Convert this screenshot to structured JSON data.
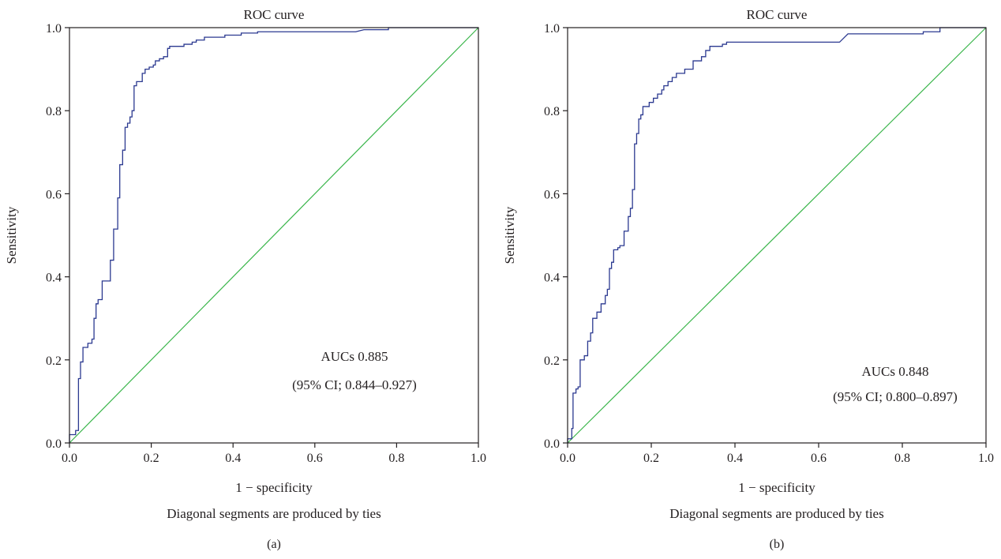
{
  "footnote": "Diagonal segments are produced by ties",
  "chart_data": [
    {
      "type": "line",
      "panel_label": "(a)",
      "title": "ROC curve",
      "xlabel": "1 − specificity",
      "ylabel": "Sensitivity",
      "xlim": [
        0,
        1
      ],
      "ylim": [
        0,
        1
      ],
      "xticks": [
        "0.0",
        "0.2",
        "0.4",
        "0.6",
        "0.8",
        "1.0"
      ],
      "yticks": [
        "0.0",
        "0.2",
        "0.4",
        "0.6",
        "0.8",
        "1.0"
      ],
      "grid": false,
      "annotation_auc": "AUCs 0.885",
      "annotation_ci": "(95% CI; 0.844–0.927)",
      "colors": {
        "roc": "#2b3990",
        "reference": "#39b54a"
      },
      "series": [
        {
          "points": [
            [
              0,
              0
            ],
            [
              0,
              0.02
            ],
            [
              0.015,
              0.02
            ],
            [
              0.015,
              0.03
            ],
            [
              0.022,
              0.03
            ],
            [
              0.022,
              0.155
            ],
            [
              0.027,
              0.155
            ],
            [
              0.027,
              0.195
            ],
            [
              0.033,
              0.195
            ],
            [
              0.033,
              0.23
            ],
            [
              0.045,
              0.23
            ],
            [
              0.045,
              0.24
            ],
            [
              0.055,
              0.24
            ],
            [
              0.055,
              0.25
            ],
            [
              0.06,
              0.25
            ],
            [
              0.06,
              0.3
            ],
            [
              0.065,
              0.3
            ],
            [
              0.065,
              0.335
            ],
            [
              0.07,
              0.335
            ],
            [
              0.07,
              0.345
            ],
            [
              0.08,
              0.345
            ],
            [
              0.08,
              0.39
            ],
            [
              0.1,
              0.39
            ],
            [
              0.1,
              0.44
            ],
            [
              0.108,
              0.44
            ],
            [
              0.108,
              0.515
            ],
            [
              0.118,
              0.515
            ],
            [
              0.118,
              0.59
            ],
            [
              0.123,
              0.59
            ],
            [
              0.123,
              0.67
            ],
            [
              0.13,
              0.67
            ],
            [
              0.13,
              0.705
            ],
            [
              0.136,
              0.705
            ],
            [
              0.136,
              0.76
            ],
            [
              0.142,
              0.76
            ],
            [
              0.142,
              0.77
            ],
            [
              0.148,
              0.77
            ],
            [
              0.148,
              0.785
            ],
            [
              0.153,
              0.785
            ],
            [
              0.153,
              0.8
            ],
            [
              0.158,
              0.8
            ],
            [
              0.158,
              0.86
            ],
            [
              0.164,
              0.86
            ],
            [
              0.164,
              0.87
            ],
            [
              0.178,
              0.87
            ],
            [
              0.178,
              0.89
            ],
            [
              0.185,
              0.89
            ],
            [
              0.185,
              0.9
            ],
            [
              0.195,
              0.9
            ],
            [
              0.195,
              0.905
            ],
            [
              0.205,
              0.905
            ],
            [
              0.205,
              0.91
            ],
            [
              0.21,
              0.91
            ],
            [
              0.21,
              0.92
            ],
            [
              0.22,
              0.92
            ],
            [
              0.22,
              0.925
            ],
            [
              0.23,
              0.925
            ],
            [
              0.23,
              0.93
            ],
            [
              0.24,
              0.93
            ],
            [
              0.24,
              0.95
            ],
            [
              0.245,
              0.95
            ],
            [
              0.245,
              0.955
            ],
            [
              0.28,
              0.955
            ],
            [
              0.28,
              0.96
            ],
            [
              0.3,
              0.96
            ],
            [
              0.3,
              0.965
            ],
            [
              0.31,
              0.965
            ],
            [
              0.31,
              0.97
            ],
            [
              0.33,
              0.97
            ],
            [
              0.33,
              0.977
            ],
            [
              0.38,
              0.977
            ],
            [
              0.38,
              0.982
            ],
            [
              0.42,
              0.982
            ],
            [
              0.42,
              0.987
            ],
            [
              0.46,
              0.987
            ],
            [
              0.46,
              0.99
            ],
            [
              0.7,
              0.99
            ],
            [
              0.72,
              0.995
            ],
            [
              0.78,
              0.995
            ],
            [
              0.78,
              1
            ],
            [
              1,
              1
            ]
          ]
        }
      ]
    },
    {
      "type": "line",
      "panel_label": "(b)",
      "title": "ROC curve",
      "xlabel": "1 − specificity",
      "ylabel": "Sensitivity",
      "xlim": [
        0,
        1
      ],
      "ylim": [
        0,
        1
      ],
      "xticks": [
        "0.0",
        "0.2",
        "0.4",
        "0.6",
        "0.8",
        "1.0"
      ],
      "yticks": [
        "0.0",
        "0.2",
        "0.4",
        "0.6",
        "0.8",
        "1.0"
      ],
      "grid": false,
      "annotation_auc": "AUCs 0.848",
      "annotation_ci": "(95% CI; 0.800–0.897)",
      "colors": {
        "roc": "#2b3990",
        "reference": "#39b54a"
      },
      "series": [
        {
          "points": [
            [
              0,
              0
            ],
            [
              0,
              0.01
            ],
            [
              0.01,
              0.01
            ],
            [
              0.01,
              0.035
            ],
            [
              0.013,
              0.035
            ],
            [
              0.013,
              0.12
            ],
            [
              0.02,
              0.12
            ],
            [
              0.02,
              0.13
            ],
            [
              0.025,
              0.13
            ],
            [
              0.025,
              0.135
            ],
            [
              0.03,
              0.135
            ],
            [
              0.03,
              0.2
            ],
            [
              0.04,
              0.2
            ],
            [
              0.04,
              0.21
            ],
            [
              0.048,
              0.21
            ],
            [
              0.048,
              0.245
            ],
            [
              0.055,
              0.245
            ],
            [
              0.055,
              0.265
            ],
            [
              0.06,
              0.265
            ],
            [
              0.06,
              0.3
            ],
            [
              0.07,
              0.3
            ],
            [
              0.07,
              0.315
            ],
            [
              0.08,
              0.315
            ],
            [
              0.08,
              0.335
            ],
            [
              0.09,
              0.335
            ],
            [
              0.09,
              0.355
            ],
            [
              0.095,
              0.355
            ],
            [
              0.095,
              0.37
            ],
            [
              0.1,
              0.37
            ],
            [
              0.1,
              0.42
            ],
            [
              0.105,
              0.42
            ],
            [
              0.105,
              0.435
            ],
            [
              0.11,
              0.435
            ],
            [
              0.11,
              0.465
            ],
            [
              0.12,
              0.465
            ],
            [
              0.12,
              0.47
            ],
            [
              0.125,
              0.47
            ],
            [
              0.125,
              0.475
            ],
            [
              0.135,
              0.475
            ],
            [
              0.135,
              0.51
            ],
            [
              0.145,
              0.51
            ],
            [
              0.145,
              0.545
            ],
            [
              0.15,
              0.545
            ],
            [
              0.15,
              0.565
            ],
            [
              0.155,
              0.565
            ],
            [
              0.155,
              0.61
            ],
            [
              0.16,
              0.61
            ],
            [
              0.16,
              0.72
            ],
            [
              0.165,
              0.72
            ],
            [
              0.165,
              0.745
            ],
            [
              0.17,
              0.745
            ],
            [
              0.17,
              0.78
            ],
            [
              0.175,
              0.78
            ],
            [
              0.175,
              0.79
            ],
            [
              0.18,
              0.79
            ],
            [
              0.18,
              0.81
            ],
            [
              0.195,
              0.81
            ],
            [
              0.195,
              0.82
            ],
            [
              0.205,
              0.82
            ],
            [
              0.205,
              0.83
            ],
            [
              0.215,
              0.83
            ],
            [
              0.215,
              0.84
            ],
            [
              0.225,
              0.84
            ],
            [
              0.225,
              0.85
            ],
            [
              0.23,
              0.85
            ],
            [
              0.23,
              0.86
            ],
            [
              0.24,
              0.86
            ],
            [
              0.24,
              0.87
            ],
            [
              0.25,
              0.87
            ],
            [
              0.25,
              0.88
            ],
            [
              0.26,
              0.88
            ],
            [
              0.26,
              0.89
            ],
            [
              0.28,
              0.89
            ],
            [
              0.28,
              0.9
            ],
            [
              0.3,
              0.9
            ],
            [
              0.3,
              0.92
            ],
            [
              0.32,
              0.92
            ],
            [
              0.32,
              0.93
            ],
            [
              0.33,
              0.93
            ],
            [
              0.33,
              0.945
            ],
            [
              0.34,
              0.945
            ],
            [
              0.34,
              0.955
            ],
            [
              0.37,
              0.955
            ],
            [
              0.37,
              0.96
            ],
            [
              0.38,
              0.96
            ],
            [
              0.38,
              0.965
            ],
            [
              0.65,
              0.965
            ],
            [
              0.67,
              0.985
            ],
            [
              0.85,
              0.985
            ],
            [
              0.85,
              0.99
            ],
            [
              0.89,
              0.99
            ],
            [
              0.89,
              1
            ],
            [
              1,
              1
            ]
          ]
        }
      ]
    }
  ]
}
